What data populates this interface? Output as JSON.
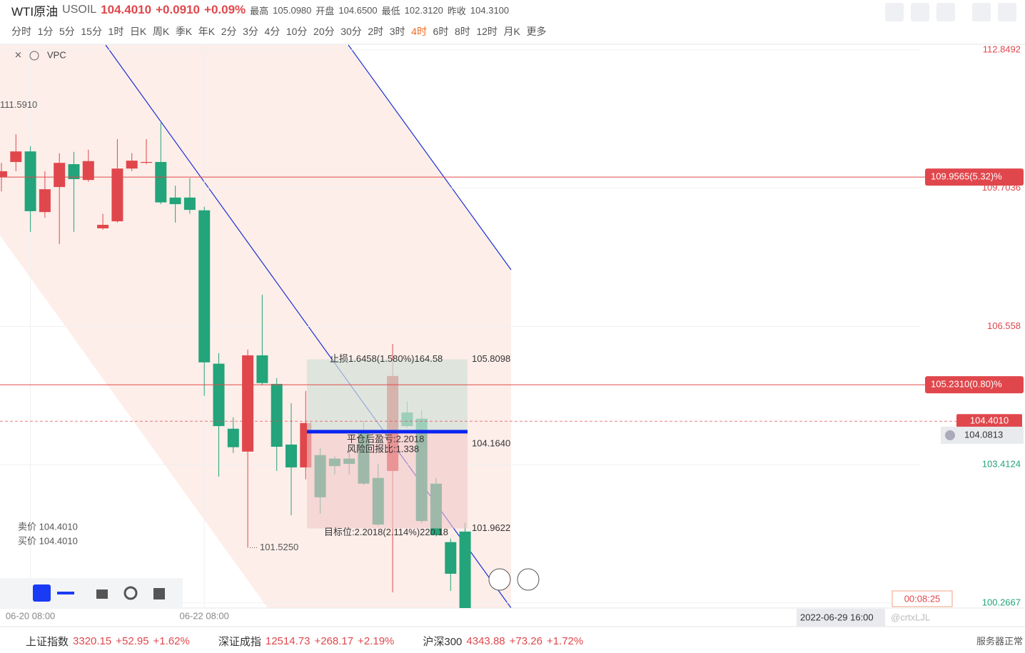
{
  "header": {
    "symbol": "WTI原油",
    "code": "USOIL",
    "price": "104.4010",
    "change": "+0.0910",
    "change_pct": "+0.09%",
    "stats": [
      {
        "label": "最高",
        "value": "105.0980"
      },
      {
        "label": "开盘",
        "value": "104.6500"
      },
      {
        "label": "最低",
        "value": "102.3120"
      },
      {
        "label": "昨收",
        "value": "104.3100"
      }
    ],
    "timeframes": [
      "分时",
      "1分",
      "5分",
      "15分",
      "1时",
      "日K",
      "周K",
      "季K",
      "年K",
      "2分",
      "3分",
      "4分",
      "10分",
      "20分",
      "30分",
      "2时",
      "3时",
      "4时",
      "6时",
      "8时",
      "12时",
      "月K",
      "更多"
    ]
  },
  "overlay": {
    "indicator": "VPC",
    "sell": "卖价 104.4010",
    "buy": "买价 104.4010",
    "timer": "00:08:25",
    "crosshair_time": "2022-06-29 16:00",
    "watermark": "@crtxLJL"
  },
  "footer": {
    "indices": [
      {
        "name": "上证指数",
        "value": "3320.15",
        "change": "+52.95",
        "pct": "+1.62%"
      },
      {
        "name": "深证成指",
        "value": "12514.73",
        "change": "+268.17",
        "pct": "+2.19%"
      },
      {
        "name": "沪深300",
        "value": "4343.88",
        "change": "+73.26",
        "pct": "+1.72%"
      }
    ],
    "status": "服务器正常"
  },
  "chart_data": {
    "type": "candlestick",
    "up_color": "#e0474c",
    "down_color": "#23a47a",
    "categories": [
      null,
      null,
      "06-20 08:00",
      null,
      null,
      null,
      null,
      null,
      null,
      null,
      null,
      null,
      null,
      null,
      "06-22 08:00",
      null,
      null,
      null,
      null,
      null,
      null,
      null,
      null,
      null,
      null,
      null,
      null,
      null,
      null,
      null,
      null,
      null,
      null
    ],
    "open": [
      109.96,
      110.3,
      110.54,
      109.16,
      109.73,
      110.25,
      109.89,
      108.79,
      108.95,
      110.15,
      110.28,
      110.3,
      109.49,
      109.49,
      109.2,
      105.71,
      104.23,
      103.71,
      105.9,
      105.25,
      103.87,
      103.35,
      103.63,
      103.55,
      103.55,
      104.16,
      103.11,
      103.27,
      104.6,
      104.46,
      102.98,
      101.65,
      101.89
    ],
    "high": [
      110.28,
      110.93,
      110.66,
      110.09,
      110.5,
      110.53,
      110.58,
      109.12,
      110.82,
      110.5,
      110.82,
      111.19,
      109.76,
      109.93,
      109.28,
      105.95,
      104.49,
      106.03,
      107.28,
      105.38,
      104.81,
      105.09,
      103.79,
      103.6,
      103.76,
      104.41,
      103.43,
      106.16,
      104.85,
      104.65,
      103.11,
      101.73,
      102.09
    ],
    "low": [
      109.63,
      110.09,
      108.71,
      109.03,
      108.43,
      108.71,
      109.85,
      108.76,
      108.92,
      110.09,
      110.25,
      109.34,
      108.92,
      109.12,
      104.98,
      103.14,
      103.68,
      101.525,
      105.22,
      103.27,
      102.26,
      103.08,
      102.3,
      103.19,
      103.19,
      102.95,
      102.02,
      100.51,
      104.25,
      102.09,
      101.78,
      100.54,
      100.15
    ],
    "close": [
      110.09,
      110.54,
      109.18,
      109.68,
      110.28,
      109.91,
      110.32,
      108.87,
      110.15,
      110.33,
      110.3,
      109.38,
      109.34,
      109.21,
      105.74,
      104.29,
      103.81,
      105.9,
      105.27,
      103.82,
      103.35,
      104.36,
      102.67,
      103.38,
      103.43,
      102.98,
      102.05,
      105.43,
      104.29,
      102.13,
      101.81,
      100.93,
      100.15
    ],
    "ylim": [
      100.15,
      112.93
    ],
    "yticks": [
      112.8492,
      109.7036,
      106.558,
      103.4124,
      100.2667
    ],
    "price_lines": [
      {
        "value": 109.9565,
        "label": "109.9565(5.32)%"
      },
      {
        "value": 105.231,
        "label": "105.2310(0.80)%"
      }
    ],
    "current": {
      "value": 104.401,
      "label": "104.4010"
    },
    "alert": {
      "value": 104.0813,
      "label": "104.0813"
    },
    "high_mark": {
      "value": 111.591,
      "label": "111.5910"
    },
    "low_mark": {
      "value": 101.525,
      "label": "101.5250"
    },
    "position": {
      "stop": {
        "value": 105.8098,
        "label": "105.8098",
        "text": "止损1.6458(1.580%)164.58"
      },
      "entry": {
        "value": 104.164,
        "label": "104.1640"
      },
      "target": {
        "value": 101.9622,
        "label": "101.9622",
        "text": "目标位:2.2018(2.114%)220.18"
      },
      "notes": [
        "平仓后盈亏:2.2018",
        "风险回报比:1.338"
      ]
    }
  }
}
